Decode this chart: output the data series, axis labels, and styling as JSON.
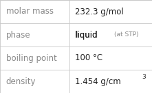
{
  "rows": [
    {
      "label": "molar mass",
      "value": "232.3 g/mol",
      "value2": null,
      "value2_size": null,
      "value2_super": false
    },
    {
      "label": "phase",
      "value": "liquid",
      "value2": "(at STP)",
      "value2_size": 6.5,
      "value2_super": false
    },
    {
      "label": "boiling point",
      "value": "100 °C",
      "value2": null,
      "value2_size": null,
      "value2_super": false
    },
    {
      "label": "density",
      "value": "1.454 g/cm",
      "value2": "3",
      "value2_size": 6.5,
      "value2_super": true
    }
  ],
  "bg_color": "#ffffff",
  "border_color": "#c8c8c8",
  "label_color": "#888888",
  "value_color": "#222222",
  "label_fontsize": 8.5,
  "value_fontsize": 8.5,
  "col_split": 0.455,
  "figw": 2.21,
  "figh": 1.36,
  "dpi": 100
}
